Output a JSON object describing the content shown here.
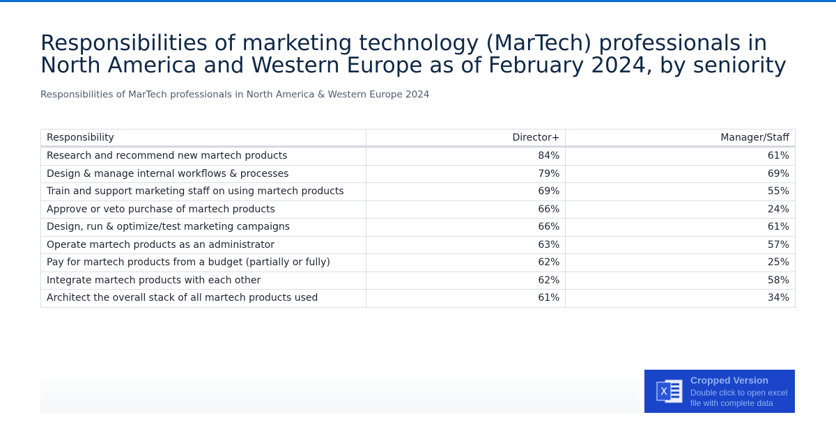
{
  "header": {
    "title": "Responsibilities of marketing technology (MarTech) professionals in North America and Western Europe as of February 2024, by seniority",
    "subtitle": "Responsibilities of MarTech professionals in North America & Western Europe 2024"
  },
  "table": {
    "columns": [
      "Responsibility",
      "Director+",
      "Manager/Staff"
    ],
    "rows": [
      [
        "Research and recommend new martech products",
        "84%",
        "61%"
      ],
      [
        "Design & manage internal workflows & processes",
        "79%",
        "69%"
      ],
      [
        "Train and support marketing staff on using martech products",
        "69%",
        "55%"
      ],
      [
        "Approve or veto purchase of martech products",
        "66%",
        "24%"
      ],
      [
        "Design, run & optimize/test marketing campaigns",
        "66%",
        "61%"
      ],
      [
        "Operate martech products as an administrator",
        "63%",
        "57%"
      ],
      [
        "Pay for martech products from a budget (partially or fully)",
        "62%",
        "25%"
      ],
      [
        "Integrate martech products with each other",
        "62%",
        "58%"
      ],
      [
        "Architect the overall stack of all martech products used",
        "61%",
        "34%"
      ]
    ]
  },
  "badge": {
    "icon_label": "X",
    "title": "Cropped Version",
    "lines": [
      "Double click to open excel",
      "file with complete data"
    ]
  }
}
